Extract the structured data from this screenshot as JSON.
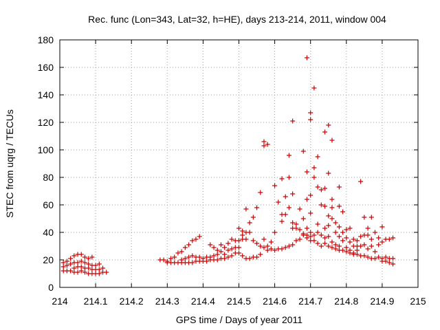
{
  "chart_data": {
    "type": "scatter",
    "title": "Rec. func (Lon=343, Lat=32, h=HE), days 213-214, 2011, window 004",
    "xlabel": "GPS time / Days of year 2011",
    "ylabel": "STEC from uqrg / TECUs",
    "xlim": [
      214,
      215
    ],
    "ylim": [
      0,
      180
    ],
    "xticks": [
      214,
      214.1,
      214.2,
      214.3,
      214.4,
      214.5,
      214.6,
      214.7,
      214.8,
      214.9,
      215
    ],
    "xtick_labels": [
      "214",
      "214.1",
      "214.2",
      "214.3",
      "214.4",
      "214.5",
      "214.6",
      "214.7",
      "214.8",
      "214.9",
      "215"
    ],
    "yticks": [
      0,
      20,
      40,
      60,
      80,
      100,
      120,
      140,
      160,
      180
    ],
    "ytick_labels": [
      "0",
      "20",
      "40",
      "60",
      "80",
      "100",
      "120",
      "140",
      "160",
      "180"
    ],
    "grid": true,
    "marker": "plus",
    "color": "#cc0000",
    "points": [
      [
        214.01,
        18
      ],
      [
        214.01,
        15
      ],
      [
        214.01,
        12
      ],
      [
        214.02,
        19
      ],
      [
        214.02,
        16
      ],
      [
        214.02,
        12
      ],
      [
        214.03,
        21
      ],
      [
        214.03,
        17
      ],
      [
        214.03,
        12
      ],
      [
        214.04,
        23
      ],
      [
        214.04,
        18
      ],
      [
        214.04,
        14
      ],
      [
        214.04,
        11
      ],
      [
        214.05,
        24
      ],
      [
        214.05,
        18
      ],
      [
        214.05,
        15
      ],
      [
        214.05,
        11
      ],
      [
        214.06,
        24
      ],
      [
        214.06,
        19
      ],
      [
        214.06,
        15
      ],
      [
        214.06,
        12
      ],
      [
        214.07,
        22
      ],
      [
        214.07,
        18
      ],
      [
        214.07,
        14
      ],
      [
        214.07,
        11
      ],
      [
        214.08,
        21
      ],
      [
        214.08,
        17
      ],
      [
        214.08,
        14
      ],
      [
        214.08,
        10
      ],
      [
        214.09,
        22
      ],
      [
        214.09,
        16
      ],
      [
        214.09,
        13
      ],
      [
        214.09,
        10
      ],
      [
        214.1,
        16
      ],
      [
        214.1,
        13
      ],
      [
        214.1,
        10
      ],
      [
        214.11,
        17
      ],
      [
        214.11,
        13
      ],
      [
        214.11,
        10
      ],
      [
        214.12,
        14
      ],
      [
        214.12,
        11
      ],
      [
        214.13,
        11
      ],
      [
        214.28,
        20
      ],
      [
        214.29,
        20
      ],
      [
        214.3,
        19
      ],
      [
        214.3,
        18
      ],
      [
        214.31,
        21
      ],
      [
        214.31,
        18
      ],
      [
        214.32,
        22
      ],
      [
        214.32,
        18
      ],
      [
        214.33,
        25
      ],
      [
        214.33,
        18
      ],
      [
        214.34,
        26
      ],
      [
        214.34,
        20
      ],
      [
        214.34,
        18
      ],
      [
        214.35,
        29
      ],
      [
        214.35,
        21
      ],
      [
        214.35,
        18
      ],
      [
        214.36,
        31
      ],
      [
        214.36,
        22
      ],
      [
        214.36,
        18
      ],
      [
        214.37,
        34
      ],
      [
        214.37,
        23
      ],
      [
        214.37,
        18
      ],
      [
        214.38,
        35
      ],
      [
        214.38,
        22
      ],
      [
        214.38,
        19
      ],
      [
        214.39,
        37
      ],
      [
        214.39,
        22
      ],
      [
        214.39,
        19
      ],
      [
        214.4,
        21
      ],
      [
        214.4,
        19
      ],
      [
        214.41,
        22
      ],
      [
        214.41,
        19
      ],
      [
        214.42,
        31
      ],
      [
        214.42,
        22
      ],
      [
        214.42,
        20
      ],
      [
        214.43,
        29
      ],
      [
        214.43,
        23
      ],
      [
        214.43,
        20
      ],
      [
        214.44,
        27
      ],
      [
        214.44,
        24
      ],
      [
        214.44,
        20
      ],
      [
        214.45,
        31
      ],
      [
        214.45,
        26
      ],
      [
        214.45,
        21
      ],
      [
        214.46,
        29
      ],
      [
        214.46,
        24
      ],
      [
        214.46,
        21
      ],
      [
        214.47,
        32
      ],
      [
        214.47,
        27
      ],
      [
        214.47,
        22
      ],
      [
        214.48,
        35
      ],
      [
        214.48,
        28
      ],
      [
        214.48,
        23
      ],
      [
        214.49,
        34
      ],
      [
        214.49,
        29
      ],
      [
        214.49,
        25
      ],
      [
        214.5,
        43
      ],
      [
        214.5,
        34
      ],
      [
        214.5,
        29
      ],
      [
        214.5,
        25
      ],
      [
        214.51,
        41
      ],
      [
        214.51,
        38
      ],
      [
        214.51,
        35
      ],
      [
        214.51,
        23
      ],
      [
        214.52,
        57
      ],
      [
        214.52,
        40
      ],
      [
        214.52,
        35
      ],
      [
        214.52,
        21
      ],
      [
        214.53,
        47
      ],
      [
        214.53,
        40
      ],
      [
        214.53,
        21
      ],
      [
        214.54,
        51
      ],
      [
        214.54,
        34
      ],
      [
        214.54,
        22
      ],
      [
        214.55,
        58
      ],
      [
        214.55,
        32
      ],
      [
        214.55,
        22
      ],
      [
        214.56,
        69
      ],
      [
        214.56,
        30
      ],
      [
        214.56,
        24
      ],
      [
        214.57,
        106
      ],
      [
        214.57,
        103
      ],
      [
        214.57,
        35
      ],
      [
        214.57,
        29
      ],
      [
        214.58,
        104
      ],
      [
        214.58,
        30
      ],
      [
        214.58,
        27
      ],
      [
        214.59,
        33
      ],
      [
        214.59,
        28
      ],
      [
        214.6,
        74
      ],
      [
        214.6,
        40
      ],
      [
        214.6,
        27
      ],
      [
        214.61,
        62
      ],
      [
        214.61,
        28
      ],
      [
        214.62,
        79
      ],
      [
        214.62,
        53
      ],
      [
        214.62,
        48
      ],
      [
        214.62,
        28
      ],
      [
        214.63,
        66
      ],
      [
        214.63,
        53
      ],
      [
        214.63,
        29
      ],
      [
        214.64,
        96
      ],
      [
        214.64,
        80
      ],
      [
        214.64,
        58
      ],
      [
        214.64,
        30
      ],
      [
        214.65,
        121
      ],
      [
        214.65,
        68
      ],
      [
        214.65,
        47
      ],
      [
        214.65,
        43
      ],
      [
        214.65,
        31
      ],
      [
        214.66,
        46
      ],
      [
        214.66,
        43
      ],
      [
        214.66,
        34
      ],
      [
        214.67,
        57
      ],
      [
        214.67,
        42
      ],
      [
        214.67,
        35
      ],
      [
        214.68,
        99
      ],
      [
        214.68,
        50
      ],
      [
        214.68,
        39
      ],
      [
        214.68,
        38
      ],
      [
        214.69,
        167
      ],
      [
        214.69,
        84
      ],
      [
        214.69,
        64
      ],
      [
        214.69,
        43
      ],
      [
        214.69,
        38
      ],
      [
        214.69,
        36
      ],
      [
        214.7,
        127
      ],
      [
        214.7,
        122
      ],
      [
        214.7,
        67
      ],
      [
        214.7,
        54
      ],
      [
        214.7,
        40
      ],
      [
        214.7,
        37
      ],
      [
        214.7,
        34
      ],
      [
        214.71,
        145
      ],
      [
        214.71,
        87
      ],
      [
        214.71,
        80
      ],
      [
        214.71,
        38
      ],
      [
        214.71,
        34
      ],
      [
        214.72,
        95
      ],
      [
        214.72,
        73
      ],
      [
        214.72,
        46
      ],
      [
        214.72,
        40
      ],
      [
        214.72,
        32
      ],
      [
        214.73,
        71
      ],
      [
        214.73,
        60
      ],
      [
        214.73,
        38
      ],
      [
        214.73,
        30
      ],
      [
        214.74,
        113
      ],
      [
        214.74,
        72
      ],
      [
        214.74,
        59
      ],
      [
        214.74,
        43
      ],
      [
        214.74,
        36
      ],
      [
        214.74,
        32
      ],
      [
        214.75,
        118
      ],
      [
        214.75,
        83
      ],
      [
        214.75,
        52
      ],
      [
        214.75,
        45
      ],
      [
        214.75,
        37
      ],
      [
        214.75,
        30
      ],
      [
        214.76,
        107
      ],
      [
        214.76,
        64
      ],
      [
        214.76,
        58
      ],
      [
        214.76,
        50
      ],
      [
        214.76,
        33
      ],
      [
        214.76,
        29
      ],
      [
        214.77,
        47
      ],
      [
        214.77,
        40
      ],
      [
        214.77,
        31
      ],
      [
        214.77,
        28
      ],
      [
        214.78,
        73
      ],
      [
        214.78,
        59
      ],
      [
        214.78,
        44
      ],
      [
        214.78,
        37
      ],
      [
        214.78,
        30
      ],
      [
        214.78,
        27
      ],
      [
        214.79,
        55
      ],
      [
        214.79,
        40
      ],
      [
        214.79,
        34
      ],
      [
        214.79,
        27
      ],
      [
        214.8,
        42
      ],
      [
        214.8,
        36
      ],
      [
        214.8,
        29
      ],
      [
        214.8,
        26
      ],
      [
        214.81,
        43
      ],
      [
        214.81,
        33
      ],
      [
        214.81,
        27
      ],
      [
        214.81,
        25
      ],
      [
        214.82,
        35
      ],
      [
        214.82,
        30
      ],
      [
        214.82,
        25
      ],
      [
        214.82,
        24
      ],
      [
        214.83,
        34
      ],
      [
        214.83,
        30
      ],
      [
        214.83,
        27
      ],
      [
        214.83,
        24
      ],
      [
        214.84,
        77
      ],
      [
        214.84,
        37
      ],
      [
        214.84,
        30
      ],
      [
        214.84,
        23
      ],
      [
        214.85,
        51
      ],
      [
        214.85,
        38
      ],
      [
        214.85,
        31
      ],
      [
        214.85,
        23
      ],
      [
        214.86,
        43
      ],
      [
        214.86,
        38
      ],
      [
        214.86,
        28
      ],
      [
        214.86,
        22
      ],
      [
        214.87,
        51
      ],
      [
        214.87,
        35
      ],
      [
        214.87,
        30
      ],
      [
        214.87,
        21
      ],
      [
        214.88,
        40
      ],
      [
        214.88,
        26
      ],
      [
        214.88,
        21
      ],
      [
        214.89,
        36
      ],
      [
        214.89,
        31
      ],
      [
        214.89,
        22
      ],
      [
        214.9,
        44
      ],
      [
        214.9,
        33
      ],
      [
        214.9,
        21
      ],
      [
        214.9,
        19
      ],
      [
        214.91,
        35
      ],
      [
        214.91,
        22
      ],
      [
        214.91,
        19
      ],
      [
        214.92,
        35
      ],
      [
        214.92,
        21
      ],
      [
        214.92,
        18
      ],
      [
        214.93,
        36
      ],
      [
        214.93,
        21
      ],
      [
        214.93,
        17
      ]
    ]
  }
}
